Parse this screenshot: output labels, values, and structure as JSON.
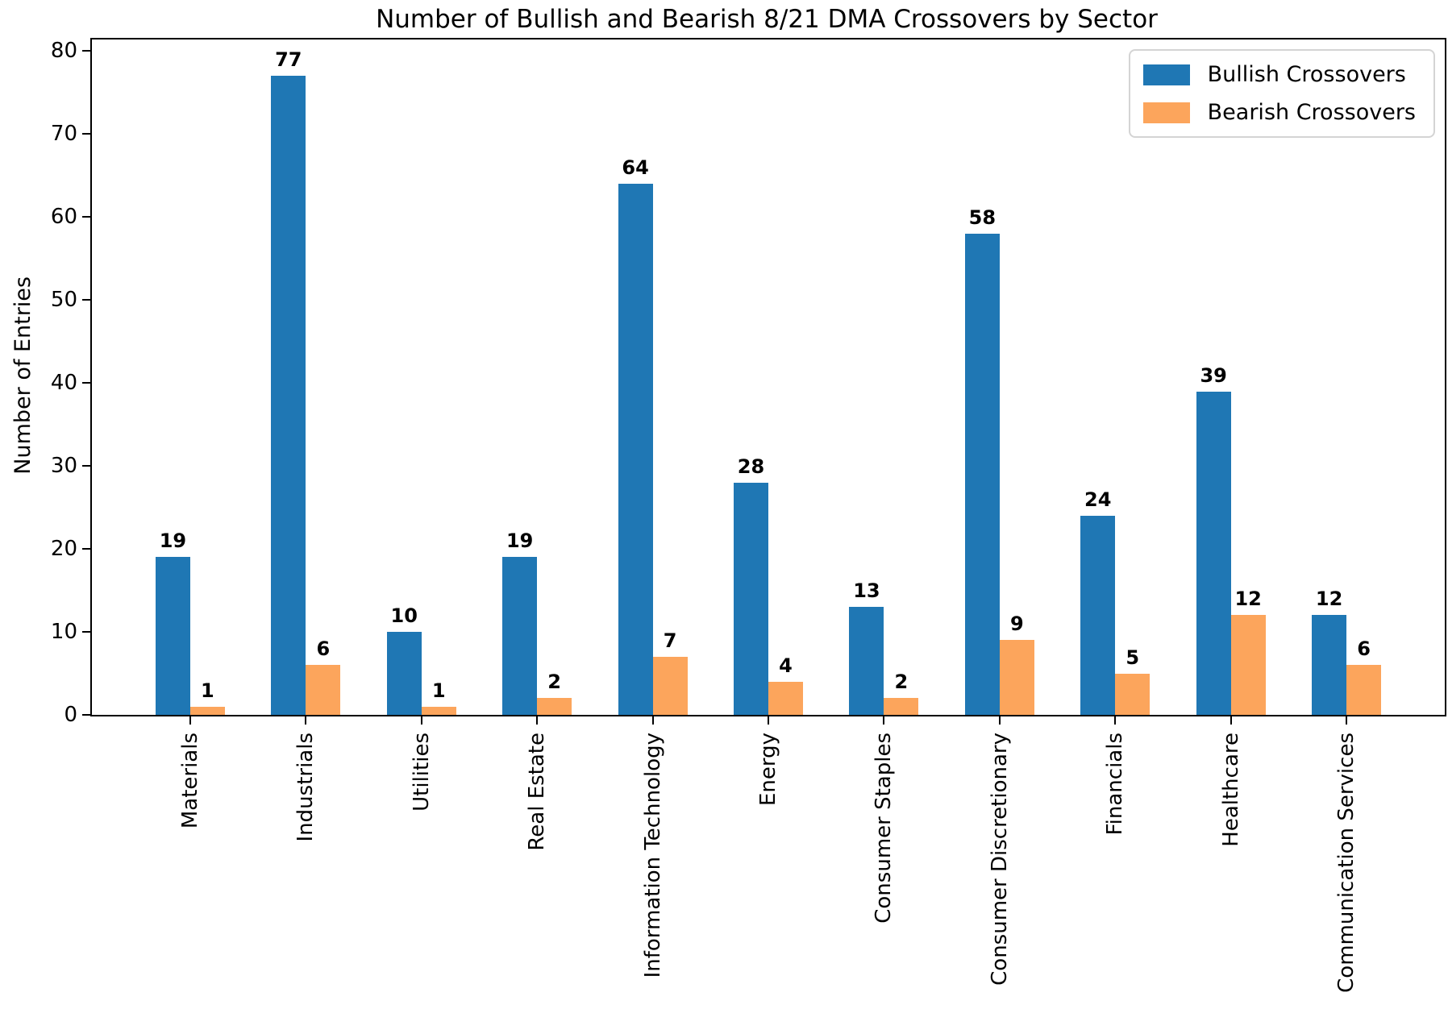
{
  "chart_data": {
    "type": "bar",
    "title": "Number of Bullish and Bearish 8/21 DMA Crossovers by Sector",
    "xlabel": "",
    "ylabel": "Number of Entries",
    "categories": [
      "Materials",
      "Industrials",
      "Utilities",
      "Real Estate",
      "Information Technology",
      "Energy",
      "Consumer Staples",
      "Consumer Discretionary",
      "Financials",
      "Healthcare",
      "Communication Services"
    ],
    "series": [
      {
        "name": "Bullish Crossovers",
        "color": "#1f77b4",
        "values": [
          19,
          77,
          10,
          19,
          64,
          28,
          13,
          58,
          24,
          39,
          12
        ]
      },
      {
        "name": "Bearish Crossovers",
        "color": "#fca55c",
        "values": [
          1,
          6,
          1,
          2,
          7,
          4,
          2,
          9,
          5,
          12,
          6
        ]
      }
    ],
    "yticks": [
      0,
      10,
      20,
      30,
      40,
      50,
      60,
      70,
      80
    ],
    "ylim": [
      0,
      81.4
    ],
    "xlim": [
      -0.85,
      10.85
    ],
    "bar_width_units": 0.3,
    "grid": false,
    "legend_position": "upper right",
    "bar_value_labels": true,
    "colors": {
      "axis": "#000000",
      "background": "#ffffff",
      "legend_border": "#d4d4d4"
    }
  }
}
